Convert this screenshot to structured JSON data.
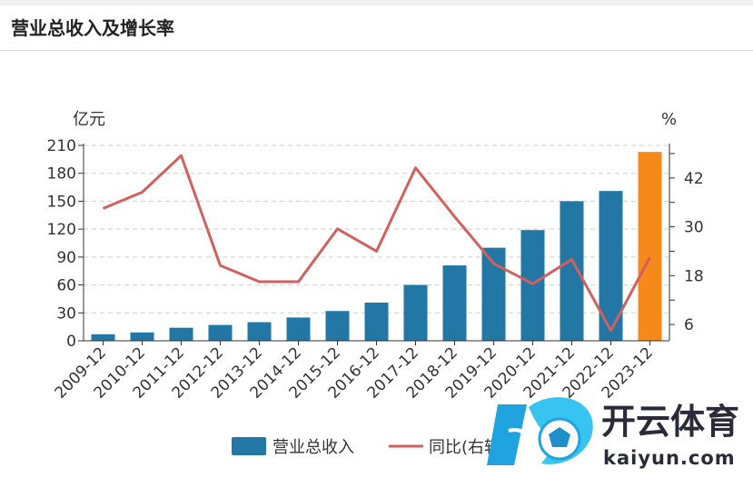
{
  "page": {
    "title": "营业总收入及增长率"
  },
  "logo": {
    "name": "开云体育",
    "domain": "kaiyun.com"
  },
  "colors": {
    "bar": "#2277a4",
    "bar_highlight": "#f7891a",
    "line": "#d1605e",
    "grid": "#cfcfcf",
    "axis": "#333333"
  },
  "chart_data": {
    "type": "bar",
    "title": "营业总收入及增长率",
    "categories": [
      "2009-12",
      "2010-12",
      "2011-12",
      "2012-12",
      "2013-12",
      "2014-12",
      "2015-12",
      "2016-12",
      "2017-12",
      "2018-12",
      "2019-12",
      "2020-12",
      "2021-12",
      "2022-12",
      "2023-12"
    ],
    "left_axis": {
      "unit": "亿元",
      "ticks": [
        "0",
        "30",
        "60",
        "90",
        "120",
        "150",
        "180",
        "210"
      ],
      "ylim": [
        0,
        210
      ]
    },
    "right_axis": {
      "unit": "%",
      "ticks": [
        "6",
        "18",
        "30",
        "42"
      ],
      "ylim": [
        2,
        50
      ]
    },
    "highlight_category": "2023-12",
    "series": [
      {
        "name": "营业总收入",
        "type": "bar",
        "axis": "left",
        "values": [
          7,
          9,
          14,
          17,
          20,
          25,
          32,
          41,
          60,
          81,
          100,
          119,
          150,
          161,
          203
        ]
      },
      {
        "name": "同比(右轴)",
        "type": "line",
        "axis": "right",
        "values": [
          34.5,
          38.5,
          47.5,
          20.5,
          16.5,
          16.5,
          29.5,
          24,
          44.5,
          32.5,
          21,
          16,
          22,
          4.5,
          22.5
        ]
      }
    ],
    "grid": true,
    "legend": "bottom"
  }
}
